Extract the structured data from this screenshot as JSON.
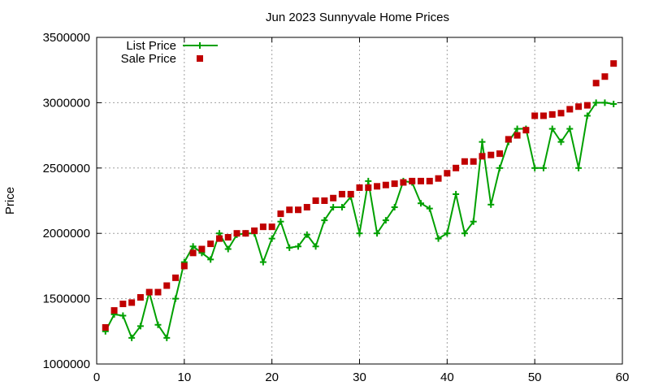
{
  "chart_data": {
    "type": "line",
    "title": "Jun 2023 Sunnyvale Home Prices",
    "xlabel": "",
    "ylabel": "Price",
    "xlim": [
      0,
      60
    ],
    "ylim": [
      1000000,
      3500000
    ],
    "xticks": [
      "0",
      "10",
      "20",
      "30",
      "40",
      "50",
      "60"
    ],
    "yticks": [
      "1000000",
      "1500000",
      "2000000",
      "2500000",
      "3000000",
      "3500000"
    ],
    "grid": true,
    "legend_position": "top-left",
    "series": [
      {
        "name": "List Price",
        "style": "linespoints",
        "marker": "plus",
        "color": "#00a000",
        "x": [
          1,
          2,
          3,
          4,
          5,
          6,
          7,
          8,
          9,
          10,
          11,
          12,
          13,
          14,
          15,
          16,
          17,
          18,
          19,
          20,
          21,
          22,
          23,
          24,
          25,
          26,
          27,
          28,
          29,
          30,
          31,
          32,
          33,
          34,
          35,
          36,
          37,
          38,
          39,
          40,
          41,
          42,
          43,
          44,
          45,
          46,
          47,
          48,
          49,
          50,
          51,
          52,
          53,
          54,
          55,
          56,
          57,
          58,
          59
        ],
        "values": [
          1250000,
          1380000,
          1370000,
          1200000,
          1290000,
          1550000,
          1300000,
          1200000,
          1500000,
          1780000,
          1900000,
          1850000,
          1800000,
          2000000,
          1880000,
          1990000,
          2000000,
          2000000,
          1780000,
          1960000,
          2090000,
          1890000,
          1900000,
          1990000,
          1900000,
          2100000,
          2200000,
          2200000,
          2280000,
          2000000,
          2400000,
          2000000,
          2100000,
          2200000,
          2400000,
          2390000,
          2230000,
          2190000,
          1960000,
          2000000,
          2300000,
          2000000,
          2090000,
          2700000,
          2220000,
          2500000,
          2700000,
          2800000,
          2800000,
          2500000,
          2500000,
          2800000,
          2700000,
          2800000,
          2500000,
          2900000,
          3000000,
          3000000,
          2990000
        ]
      },
      {
        "name": "Sale Price",
        "style": "points",
        "marker": "square",
        "color": "#c00000",
        "x": [
          1,
          2,
          3,
          4,
          5,
          6,
          7,
          8,
          9,
          10,
          11,
          12,
          13,
          14,
          15,
          16,
          17,
          18,
          19,
          20,
          21,
          22,
          23,
          24,
          25,
          26,
          27,
          28,
          29,
          30,
          31,
          32,
          33,
          34,
          35,
          36,
          37,
          38,
          39,
          40,
          41,
          42,
          43,
          44,
          45,
          46,
          47,
          48,
          49,
          50,
          51,
          52,
          53,
          54,
          55,
          56,
          57,
          58,
          59
        ],
        "values": [
          1280000,
          1410000,
          1460000,
          1470000,
          1510000,
          1550000,
          1550000,
          1600000,
          1660000,
          1750000,
          1850000,
          1880000,
          1920000,
          1960000,
          1970000,
          2000000,
          2000000,
          2020000,
          2050000,
          2050000,
          2150000,
          2180000,
          2180000,
          2200000,
          2250000,
          2250000,
          2270000,
          2300000,
          2300000,
          2350000,
          2350000,
          2360000,
          2370000,
          2380000,
          2390000,
          2400000,
          2400000,
          2400000,
          2420000,
          2460000,
          2500000,
          2550000,
          2550000,
          2590000,
          2600000,
          2610000,
          2720000,
          2750000,
          2790000,
          2900000,
          2900000,
          2910000,
          2920000,
          2950000,
          2970000,
          2980000,
          3150000,
          3200000,
          3300000
        ]
      }
    ]
  }
}
